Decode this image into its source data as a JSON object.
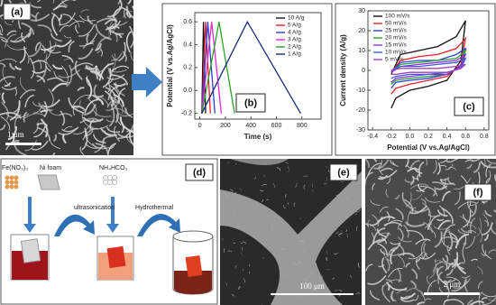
{
  "chart_data": [
    {
      "type": "line",
      "panel_label": "(b)",
      "x_label": "Time (s)",
      "y_label": "Potential (V vs.Ag/AgCl)",
      "xlim": [
        -40,
        950
      ],
      "ylim": [
        -0.25,
        0.68
      ],
      "xticks": [
        0,
        200,
        400,
        600,
        800
      ],
      "yticks": [
        -0.2,
        {
          "value": 0,
          "label": "0.0"
        },
        0.2,
        0.4,
        0.6
      ],
      "series": [
        {
          "name": "10 A/g",
          "color": "#111111",
          "x": [
            15,
            28,
            45
          ],
          "values": [
            -0.2,
            0.6,
            -0.2
          ]
        },
        {
          "name": "5 A/g",
          "color": "#e8202a",
          "x": [
            15,
            45,
            82
          ],
          "values": [
            -0.2,
            0.6,
            -0.2
          ]
        },
        {
          "name": "4 A/g",
          "color": "#2b3fd6",
          "x": [
            15,
            62,
            118
          ],
          "values": [
            -0.2,
            0.6,
            -0.2
          ]
        },
        {
          "name": "3 A/g",
          "color": "#e02bd0",
          "x": [
            15,
            92,
            168
          ],
          "values": [
            -0.2,
            0.6,
            -0.2
          ]
        },
        {
          "name": "2 A/g",
          "color": "#2aa02a",
          "x": [
            15,
            150,
            272
          ],
          "values": [
            -0.2,
            0.6,
            -0.2
          ]
        },
        {
          "name": "1 A/g",
          "color": "#1c2a78",
          "x": [
            15,
            372,
            790
          ],
          "values": [
            -0.2,
            0.6,
            -0.2
          ]
        }
      ]
    },
    {
      "type": "line",
      "panel_label": "(c)",
      "x_label": "Potential (V vs.Ag/AgCl)",
      "y_label": "Current density (A/g)",
      "xlim": [
        -0.45,
        0.85
      ],
      "ylim": [
        -30,
        30
      ],
      "xticks": [
        -0.4,
        -0.2,
        {
          "value": 0,
          "label": "0.0"
        },
        0.2,
        0.4,
        0.6,
        0.8
      ],
      "yticks": [
        -30,
        -20,
        -10,
        0,
        10,
        20,
        30
      ],
      "series": [
        {
          "name": "100 mV/s",
          "color": "#111111",
          "x": [
            -0.2,
            -0.1,
            0.1,
            0.3,
            0.5,
            0.6,
            0.55,
            0.4,
            0.2,
            0,
            -0.15,
            -0.2
          ],
          "values": [
            -2,
            8,
            10,
            12,
            17,
            25,
            5,
            -5,
            -8,
            -10,
            -14,
            -19
          ]
        },
        {
          "name": "50 mV/s",
          "color": "#e8202a",
          "x": [
            -0.2,
            -0.1,
            0.1,
            0.3,
            0.5,
            0.6,
            0.55,
            0.4,
            0.2,
            0,
            -0.15,
            -0.2
          ],
          "values": [
            -1,
            5,
            7,
            8,
            11,
            16,
            3,
            -3,
            -5,
            -7,
            -9,
            -12
          ]
        },
        {
          "name": "25 mV/s",
          "color": "#2b3fd6",
          "x": [
            -0.2,
            -0.1,
            0.1,
            0.3,
            0.5,
            0.6,
            0.55,
            0.4,
            0.2,
            0,
            -0.15,
            -0.2
          ],
          "values": [
            -1,
            4,
            5,
            5,
            8,
            11,
            2,
            -2,
            -4,
            -5,
            -6,
            -9
          ]
        },
        {
          "name": "20 mV/s",
          "color": "#2aa02a",
          "x": [
            -0.2,
            -0.1,
            0.1,
            0.3,
            0.5,
            0.6,
            0.55,
            0.4,
            0.2,
            0,
            -0.15,
            -0.2
          ],
          "values": [
            -1,
            3,
            4,
            5,
            6,
            10,
            2,
            -2,
            -3,
            -4,
            -5,
            -7
          ]
        },
        {
          "name": "15 mV/s",
          "color": "#8a2be2",
          "x": [
            -0.2,
            -0.1,
            0.1,
            0.3,
            0.5,
            0.6,
            0.55,
            0.4,
            0.2,
            0,
            -0.15,
            -0.2
          ],
          "values": [
            -1,
            2,
            3,
            4,
            5,
            8,
            2,
            -2,
            -2,
            -3,
            -4,
            -6
          ]
        },
        {
          "name": "10 mV/s",
          "color": "#3a5ad8",
          "x": [
            -0.2,
            -0.1,
            0.1,
            0.3,
            0.5,
            0.6,
            0.55,
            0.4,
            0.2,
            0,
            -0.15,
            -0.2
          ],
          "values": [
            0,
            2,
            2,
            3,
            4,
            6,
            1,
            -1,
            -2,
            -2,
            -3,
            -4
          ]
        },
        {
          "name": "5 mV/s",
          "color": "#a040c0",
          "x": [
            -0.2,
            -0.1,
            0.1,
            0.3,
            0.5,
            0.6,
            0.55,
            0.4,
            0.2,
            0,
            -0.15,
            -0.2
          ],
          "values": [
            0,
            1,
            1,
            1,
            2,
            3,
            1,
            -1,
            -1,
            -1,
            -2,
            -2
          ]
        }
      ]
    }
  ],
  "panels": {
    "a": {
      "label": "(a)",
      "scale_bar": "1 μm"
    },
    "d": {
      "label": "(d)",
      "reagent_1": "Fe(NO₃)₃",
      "reagent_2": "Ni foam",
      "reagent_3": "NH₄HCO₃",
      "step_1": "ultrasonication",
      "step_2": "Hydrothermal"
    },
    "e": {
      "label": "(e)",
      "scale_bar": "100 μm"
    },
    "f": {
      "label": "(f)",
      "scale_bar": "2 μm"
    }
  }
}
